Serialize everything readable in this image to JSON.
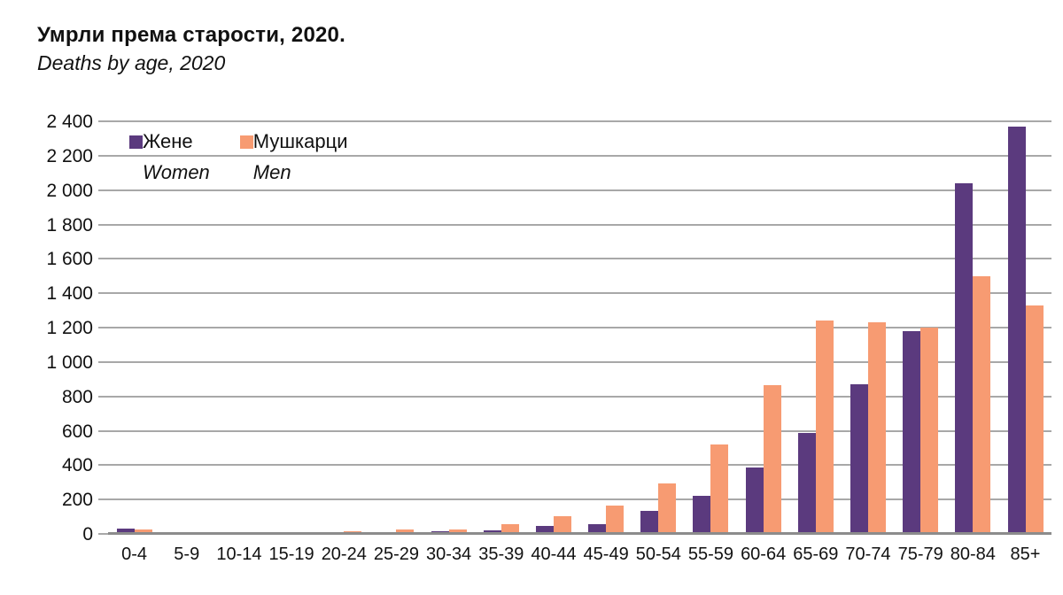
{
  "title": "Умрли према старости, 2020.",
  "subtitle": "Deaths by age, 2020",
  "legend": {
    "women_sr": "Жене",
    "women_en": "Women",
    "men_sr": "Мушкарци",
    "men_en": "Men"
  },
  "colors": {
    "women": "#5b3a7e",
    "men": "#f79b72",
    "gridline": "#a8a8a8",
    "axis": "#8c8c8c"
  },
  "chart_data": {
    "type": "bar",
    "title": "Умрли према старости, 2020.",
    "subtitle_en": "Deaths by age, 2020",
    "xlabel": "",
    "ylabel": "",
    "ylim": [
      0,
      2400
    ],
    "grid": "horizontal",
    "legend_position": "top-left-inside",
    "y_ticks": [
      "0",
      "200",
      "400",
      "600",
      "800",
      "1 000",
      "1 200",
      "1 400",
      "1 600",
      "1 800",
      "2 000",
      "2 200",
      "2 400"
    ],
    "categories": [
      "0-4",
      "5-9",
      "10-14",
      "15-19",
      "20-24",
      "25-29",
      "30-34",
      "35-39",
      "40-44",
      "45-49",
      "50-54",
      "55-59",
      "60-64",
      "65-69",
      "70-74",
      "75-79",
      "80-84",
      "85+"
    ],
    "series": [
      {
        "name": "Жене / Women",
        "color_key": "women",
        "values": [
          30,
          2,
          3,
          5,
          6,
          7,
          15,
          20,
          45,
          55,
          135,
          220,
          385,
          585,
          870,
          1180,
          2040,
          2370
        ]
      },
      {
        "name": "Мушкарци / Men",
        "color_key": "men",
        "values": [
          25,
          3,
          6,
          8,
          18,
          25,
          28,
          55,
          105,
          165,
          295,
          520,
          865,
          1240,
          1230,
          1200,
          1500,
          1330
        ]
      }
    ]
  }
}
